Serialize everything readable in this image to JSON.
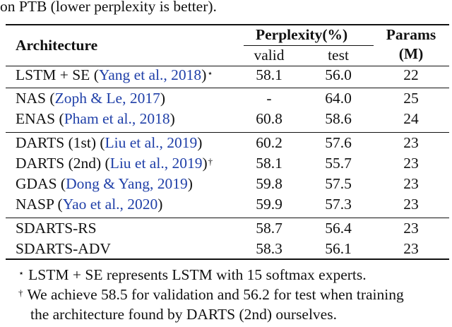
{
  "caption_tail": "on PTB (lower perplexity is better).",
  "header": {
    "architecture": "Architecture",
    "perplexity": "Perplexity(%)",
    "valid": "valid",
    "test": "test",
    "params_line1": "Params",
    "params_line2": "(M)"
  },
  "rows": [
    {
      "name": "LSTM + SE",
      "cite": "Yang et al., 2018",
      "close": ")",
      "mark": "⋆",
      "valid": "58.1",
      "test": "56.0",
      "params": "22"
    },
    {
      "name": "NAS",
      "cite": "Zoph & Le, 2017",
      "close": ")",
      "mark": "",
      "valid": "-",
      "test": "64.0",
      "params": "25"
    },
    {
      "name": "ENAS",
      "cite": "Pham et al., 2018",
      "close": ")",
      "mark": "",
      "valid": "60.8",
      "test": "58.6",
      "params": "24"
    },
    {
      "name": "DARTS (1st)",
      "cite": "Liu et al., 2019",
      "close": ")",
      "mark": "",
      "valid": "60.2",
      "test": "57.6",
      "params": "23"
    },
    {
      "name": "DARTS (2nd)",
      "cite": "Liu et al., 2019",
      "close": ")",
      "mark": "†",
      "valid": "58.1",
      "test": "55.7",
      "params": "23"
    },
    {
      "name": "GDAS",
      "cite": "Dong & Yang, 2019",
      "close": ")",
      "mark": "",
      "valid": "59.8",
      "test": "57.5",
      "params": "23"
    },
    {
      "name": "NASP",
      "cite": "Yao et al., 2020",
      "close": ")",
      "mark": "",
      "valid": "59.9",
      "test": "57.3",
      "params": "23"
    },
    {
      "name": "SDARTS-RS",
      "cite": "",
      "close": "",
      "mark": "",
      "valid": "58.7",
      "test": "56.4",
      "params": "23"
    },
    {
      "name": "SDARTS-ADV",
      "cite": "",
      "close": "",
      "mark": "",
      "valid": "58.3",
      "test": "56.1",
      "params": "23"
    }
  ],
  "footnotes": [
    {
      "mark": "⋆",
      "lines": [
        "LSTM + SE represents LSTM with 15 softmax experts."
      ]
    },
    {
      "mark": "†",
      "lines": [
        "We achieve 58.5 for validation and 56.2 for test when training",
        "the architecture found by DARTS (2nd) ourselves."
      ]
    }
  ]
}
